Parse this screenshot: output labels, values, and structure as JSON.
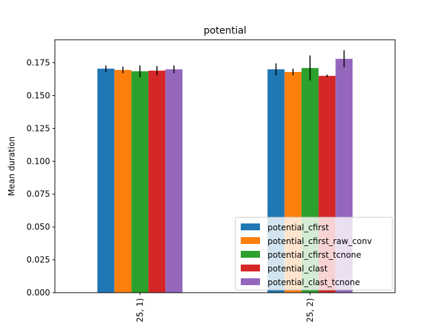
{
  "chart_data": {
    "type": "bar",
    "title": "potential",
    "xlabel": "",
    "ylabel": "Mean duration",
    "ylim": [
      0,
      0.1925
    ],
    "yticks": [
      "0.000",
      "0.025",
      "0.050",
      "0.075",
      "0.100",
      "0.125",
      "0.150",
      "0.175"
    ],
    "ytick_values": [
      0,
      0.025,
      0.05,
      0.075,
      0.1,
      0.125,
      0.15,
      0.175
    ],
    "categories": [
      "25, 1)",
      "25, 2)"
    ],
    "grid": false,
    "legend_position": "bottom-right",
    "series": [
      {
        "name": "potential_cfirst",
        "color": "#1f77b4",
        "values": [
          0.1705,
          0.17
        ],
        "errors": [
          0.0025,
          0.0045
        ]
      },
      {
        "name": "potential_cfirst_raw_conv",
        "color": "#ff7f0e",
        "values": [
          0.1695,
          0.168
        ],
        "errors": [
          0.0025,
          0.0025
        ]
      },
      {
        "name": "potential_cfirst_tcnone",
        "color": "#2ca02c",
        "values": [
          0.1685,
          0.171
        ],
        "errors": [
          0.0045,
          0.0095
        ]
      },
      {
        "name": "potential_clast",
        "color": "#d62728",
        "values": [
          0.169,
          0.165
        ],
        "errors": [
          0.0035,
          0.001
        ]
      },
      {
        "name": "potential_clast_tcnone",
        "color": "#9467bd",
        "values": [
          0.17,
          0.178
        ],
        "errors": [
          0.003,
          0.0065
        ]
      }
    ]
  }
}
